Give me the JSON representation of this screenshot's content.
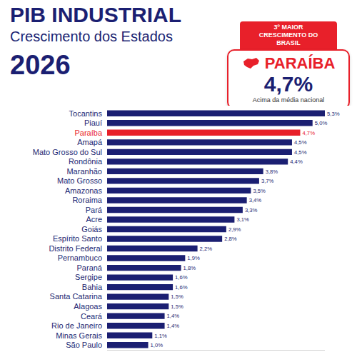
{
  "chart_data": {
    "type": "bar",
    "orientation": "horizontal",
    "title": "PIB INDUSTRIAL",
    "subtitle": "Crescimento dos Estados",
    "annotations": [
      "2026",
      "3º MAIOR CRESCIMENTO DO BRASIL",
      "PARAÍBA",
      "4,7%",
      "Acima da média nacional"
    ],
    "categories": [
      "Tocantins",
      "Piauí",
      "Paraíba",
      "Amapá",
      "Mato Grosso do Sul",
      "Rondônia",
      "Maranhão",
      "Mato Grosso",
      "Amazonas",
      "Roraima",
      "Pará",
      "Acre",
      "Goiás",
      "Espírito Santo",
      "Distrito Federal",
      "Pernambuco",
      "Paraná",
      "Sergipe",
      "Bahia",
      "Santa Catarina",
      "Alagoas",
      "Ceará",
      "Rio de Janeiro",
      "Minas Gerais",
      "São Paulo"
    ],
    "values": [
      5.3,
      5.0,
      4.7,
      4.5,
      4.5,
      4.4,
      3.8,
      3.7,
      3.5,
      3.4,
      3.3,
      3.1,
      2.9,
      2.8,
      2.2,
      1.9,
      1.8,
      1.6,
      1.6,
      1.5,
      1.5,
      1.4,
      1.4,
      1.1,
      1.0
    ],
    "value_labels": [
      "5,3%",
      "5,0%",
      "4,7%",
      "4,5%",
      "4,5%",
      "4,4%",
      "3,8%",
      "3,7%",
      "3,5%",
      "3,4%",
      "3,3%",
      "3,1%",
      "2,9%",
      "2,8%",
      "2,2%",
      "1,9%",
      "1,8%",
      "1,6%",
      "1,6%",
      "1,5%",
      "1,5%",
      "1,4%",
      "1,4%",
      "1,1%",
      "1,0%"
    ],
    "colors": [
      "#1b1f72",
      "#1b1f72",
      "#e8202a",
      "#1b1f72",
      "#1b1f72",
      "#1b1f72",
      "#1b1f72",
      "#1b1f72",
      "#1b1f72",
      "#1b1f72",
      "#1b1f72",
      "#1b1f72",
      "#1b1f72",
      "#1b1f72",
      "#1b1f72",
      "#1b1f72",
      "#1b1f72",
      "#1b1f72",
      "#1b1f72",
      "#1b1f72",
      "#1b1f72",
      "#1b1f72",
      "#1b1f72",
      "#1b1f72",
      "#1b1f72"
    ],
    "xlim": [
      0,
      5.3
    ],
    "data_labels": true,
    "tick_labels": "y",
    "grid": false
  }
}
